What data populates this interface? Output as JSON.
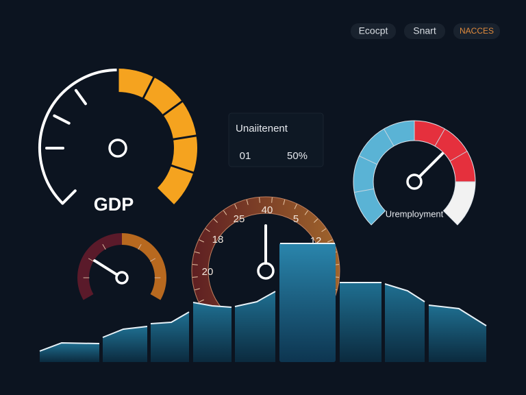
{
  "header": {
    "buttons": [
      "Ecocpt",
      "Snart",
      "NACCES"
    ]
  },
  "gdp_gauge": {
    "label": "GDP"
  },
  "info_panel": {
    "title": "Unaiitenent",
    "left": "01",
    "right": "50%"
  },
  "unemployment_gauge": {
    "label": "Uremployment"
  },
  "center_gauge": {
    "ticks": [
      "40",
      "25",
      "5",
      "18",
      "12",
      "20"
    ]
  }
}
